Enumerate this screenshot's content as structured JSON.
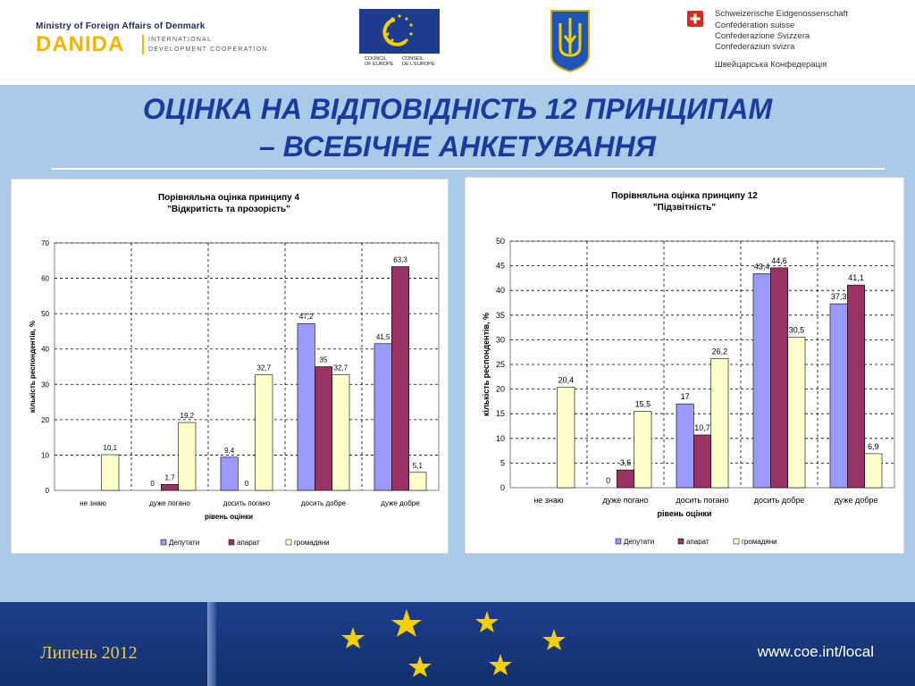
{
  "header": {
    "danida_ministry": "Ministry of Foreign Affairs of Denmark",
    "danida_name": "DANIDA",
    "danida_sub1": "INTERNATIONAL",
    "danida_sub2": "DEVELOPMENT COOPERATION",
    "coe_en": "COUNCIL\nOF EUROPE",
    "coe_fr": "CONSEIL\nDE L'EUROPE",
    "swiss_lines": [
      "Schweizerische Eidgenossenschaft",
      "Confédération suisse",
      "Confederazione Svizzera",
      "Confederaziun svizra"
    ],
    "swiss_ua": "Швейцарська Конфедерація"
  },
  "title": {
    "line1": "ОЦІНКА НА ВІДПОВІДНІСТЬ 12 ПРИНЦИПАМ",
    "line2": "– ВСЕБІЧНЕ АНКЕТУВАННЯ"
  },
  "colors": {
    "deputies": "#9999ff",
    "apparatus": "#993366",
    "citizens": "#ffffcc",
    "title": "#1b3aa0",
    "date": "#f2c84a"
  },
  "chart_data": [
    {
      "type": "bar",
      "title": "Порівняльна оцінка принципу 4",
      "subtitle": "\"Відкритість та прозорість\"",
      "categories": [
        "не знаю",
        "дуже погано",
        "досить погано",
        "досить добре",
        "дуже добре"
      ],
      "series": [
        {
          "name": "Депутати",
          "values": [
            null,
            0,
            9.4,
            47.2,
            41.5
          ],
          "labels": [
            "",
            "0",
            "9,4",
            "47,2",
            "41,5"
          ]
        },
        {
          "name": "апарат",
          "values": [
            null,
            1.7,
            0,
            35,
            63.3
          ],
          "labels": [
            "",
            "1,7",
            "0",
            "35",
            "63,3"
          ]
        },
        {
          "name": "громадяни",
          "values": [
            10.1,
            19.2,
            32.7,
            32.7,
            5.1
          ],
          "labels": [
            "10,1",
            "19,2",
            "32,7",
            "32,7",
            "5,1"
          ]
        }
      ],
      "xlabel": "рівень оцінки",
      "ylabel": "кількість респондентів, %",
      "ylim": [
        0,
        70
      ],
      "yticks": [
        0,
        10,
        20,
        30,
        40,
        50,
        60,
        70
      ],
      "grid": true,
      "legend": "bottom"
    },
    {
      "type": "bar",
      "title": "Порівняльна оцінка принципу 12",
      "subtitle": "\"Підзвітність\"",
      "categories": [
        "не знаю",
        "дуже погано",
        "досить погано",
        "досить добре",
        "дуже добре"
      ],
      "series": [
        {
          "name": "Депутати",
          "values": [
            null,
            0,
            17,
            43.4,
            37.3
          ],
          "labels": [
            "",
            "0",
            "17",
            "43,4",
            "37,3"
          ]
        },
        {
          "name": "апарат",
          "values": [
            null,
            3.6,
            10.7,
            44.6,
            41.1
          ],
          "labels": [
            "",
            "3,6",
            "10,7",
            "44,6",
            "41,1"
          ]
        },
        {
          "name": "громадяни",
          "values": [
            20.4,
            15.5,
            26.2,
            30.5,
            6.9
          ],
          "labels": [
            "20,4",
            "15,5",
            "26,2",
            "30,5",
            "6,9"
          ]
        }
      ],
      "xlabel": "рівень оцінки",
      "ylabel": "кількість респондентів, %",
      "ylim": [
        0,
        50
      ],
      "yticks": [
        0,
        5,
        10,
        15,
        20,
        25,
        30,
        35,
        40,
        45,
        50
      ],
      "grid": true,
      "legend": "bottom"
    }
  ],
  "footer": {
    "date": "Липень 2012",
    "url": "www.coe.int/local"
  }
}
